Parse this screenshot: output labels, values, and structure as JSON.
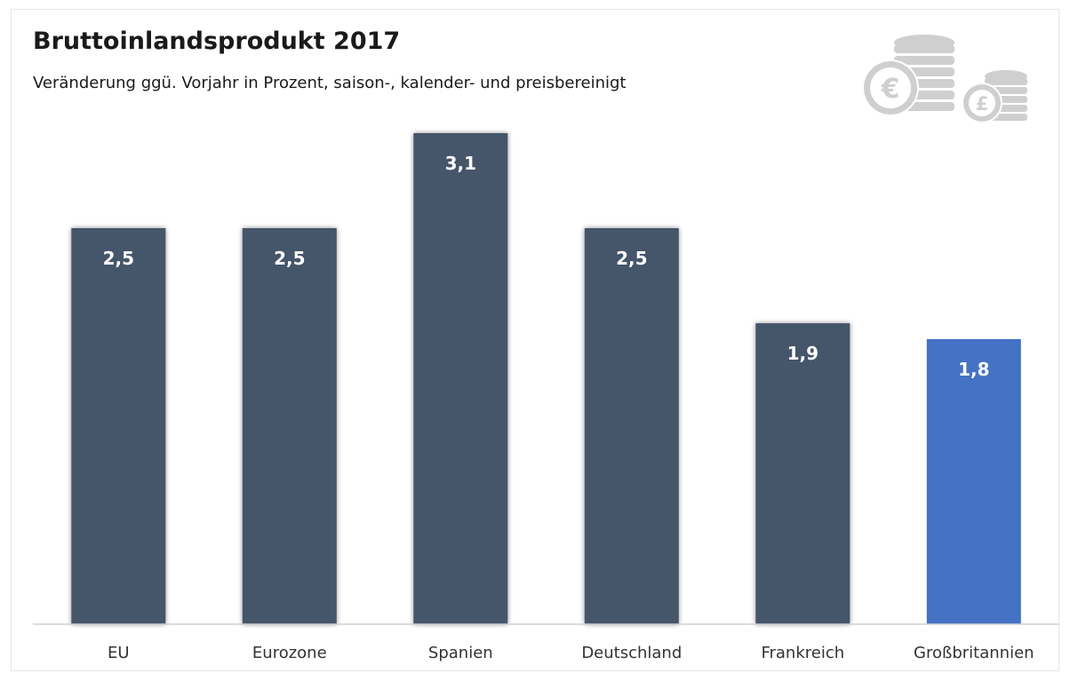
{
  "header": {
    "title": "Bruttoinlandsprodukt 2017",
    "subtitle": "Veränderung ggü. Vorjahr in Prozent, saison-, kalender- und preisbereinigt"
  },
  "decoration": {
    "icon": "coins-euro-pound-icon",
    "icon_color": "#c9c9c9"
  },
  "colors": {
    "bar": "#44546a",
    "highlight": "#4472c4",
    "axis": "#d0d0d0"
  },
  "chart_data": {
    "type": "bar",
    "title": "Bruttoinlandsprodukt 2017",
    "subtitle": "Veränderung ggü. Vorjahr in Prozent, saison-, kalender- und preisbereinigt",
    "categories": [
      "EU",
      "Eurozone",
      "Spanien",
      "Deutschland",
      "Frankreich",
      "Großbritannien"
    ],
    "values": [
      2.5,
      2.5,
      3.1,
      2.5,
      1.9,
      1.8
    ],
    "value_labels": [
      "2,5",
      "2,5",
      "3,1",
      "2,5",
      "1,9",
      "1,8"
    ],
    "highlight_index": 5,
    "ylim": [
      0,
      3.1
    ],
    "grid": false,
    "xlabel": "",
    "ylabel": ""
  }
}
